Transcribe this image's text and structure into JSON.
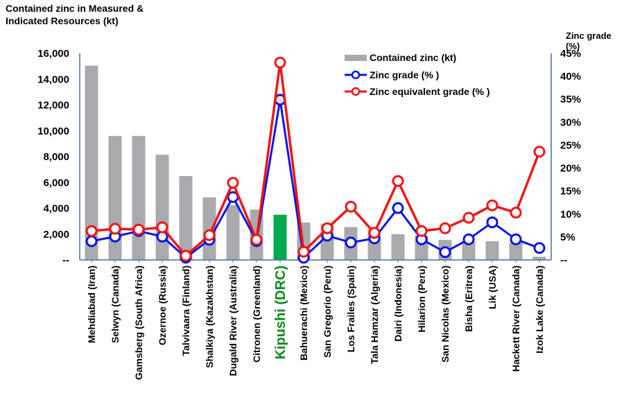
{
  "chart_data": {
    "type": "bar+line",
    "title": "",
    "ylabel": "Contained zinc in Measured & Indicated Resources (kt)",
    "y2label": "Zinc grade (%)",
    "xlabel": "",
    "ylim": [
      0,
      16000
    ],
    "y2lim": [
      0,
      45
    ],
    "yticks": [
      "--",
      "2,000",
      "4,000",
      "6,000",
      "8,000",
      "10,000",
      "12,000",
      "14,000",
      "16,000"
    ],
    "y2ticks": [
      "--",
      "5%",
      "10%",
      "15%",
      "20%",
      "25%",
      "30%",
      "35%",
      "40%",
      "45%"
    ],
    "grid": false,
    "legend_position": "top-right",
    "highlight_category": "Kipushi (DRC)",
    "colors": {
      "bar": "#a9aaad",
      "bar_highlight": "#00a84f",
      "zinc_grade": "#0a14e6",
      "zinc_equivalent": "#f01414",
      "axis": "#4a6aa0",
      "highlight_label": "#0a8a1e"
    },
    "categories": [
      "Mehdiabad (Iran)",
      "Selwyn (Canada)",
      "Gamsberg (South Africa)",
      "Ozernoe (Russia)",
      "Talvivaara (Finland)",
      "Shalkiya (Kazakhstan)",
      "Dugald River (Australia)",
      "Citronen (Greenland)",
      "Kipushi (DRC)",
      "Bahuerachi (Mexico)",
      "San Gregorio (Peru)",
      "Los Frailes (Spain)",
      "Tala Hamzar (Algeria)",
      "Dairi (Indonesia)",
      "Hilarion (Peru)",
      "San Nicolas (Mexico)",
      "Bisha (Eritrea)",
      "Lik (USA)",
      "Hackett River (Canada)",
      "Izok Lake (Canada)"
    ],
    "series": [
      {
        "name": "Contained zinc (kt)",
        "type": "bar",
        "axis": "left",
        "values": [
          15050,
          9600,
          9600,
          8150,
          6500,
          4850,
          4250,
          3900,
          3500,
          2900,
          2800,
          2550,
          2400,
          2000,
          1900,
          1550,
          1450,
          1450,
          1350,
          250
        ]
      },
      {
        "name": "Zinc grade (% )",
        "type": "line",
        "axis": "right",
        "values": [
          4.1,
          5.1,
          6.3,
          5.1,
          0.5,
          4.4,
          13.7,
          4.1,
          34.9,
          0.5,
          5.3,
          3.8,
          4.7,
          11.3,
          4.5,
          1.7,
          4.5,
          8.2,
          4.5,
          2.6
        ]
      },
      {
        "name": "Zinc equivalent grade (% )",
        "type": "line",
        "axis": "right",
        "values": [
          6.3,
          6.8,
          6.6,
          7.1,
          0.9,
          5.4,
          16.8,
          4.4,
          43.0,
          1.8,
          6.9,
          11.6,
          5.9,
          17.2,
          6.3,
          6.9,
          9.2,
          11.9,
          10.3,
          23.6
        ]
      }
    ]
  }
}
